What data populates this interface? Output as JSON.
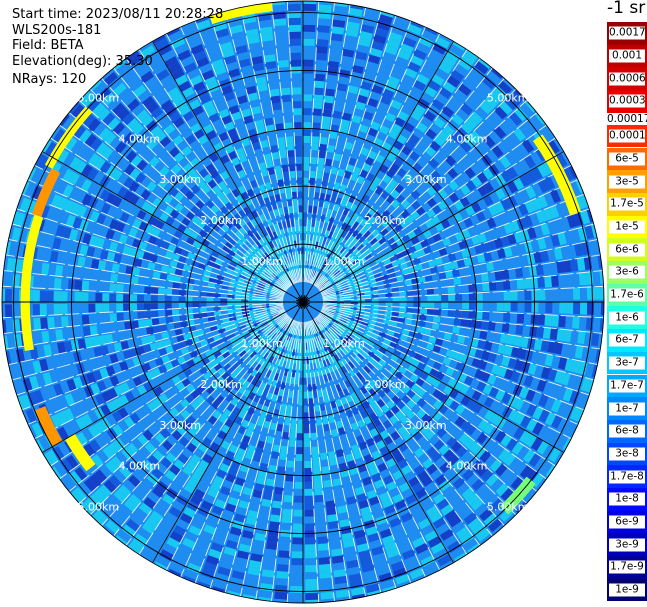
{
  "header": {
    "start_time": "Start time: 2023/08/11 20:28:28",
    "device": "WLS200s-181",
    "field": "Field: BETA",
    "elevation": "Elevation(deg): 35.30",
    "nrays": "NRays: 120"
  },
  "colorbar": {
    "title": "-1 sr",
    "top_group": [
      {
        "label": "0.0017",
        "color": "#9b0000"
      },
      {
        "label": "0.001",
        "color": "#bf0000"
      },
      {
        "label": "0.0006",
        "color": "#d40000"
      },
      {
        "label": "0.0003",
        "color": "#e80000"
      }
    ],
    "separator_label": "0.00017",
    "bottom_group": [
      {
        "label": "0.0001",
        "color": "#ff2a00"
      },
      {
        "label": "6e-5",
        "color": "#ff6a00"
      },
      {
        "label": "3e-5",
        "color": "#ffa000"
      },
      {
        "label": "1.7e-5",
        "color": "#ffd000"
      },
      {
        "label": "1e-5",
        "color": "#ffff00"
      },
      {
        "label": "6e-6",
        "color": "#d0ff20"
      },
      {
        "label": "3e-6",
        "color": "#9cff60"
      },
      {
        "label": "1.7e-6",
        "color": "#60ffa0"
      },
      {
        "label": "1e-6",
        "color": "#20ffe0"
      },
      {
        "label": "6e-7",
        "color": "#00e8ff"
      },
      {
        "label": "3e-7",
        "color": "#00c8ff"
      },
      {
        "label": "1.7e-7",
        "color": "#00a8ff"
      },
      {
        "label": "1e-7",
        "color": "#0088ff"
      },
      {
        "label": "6e-8",
        "color": "#0068ff"
      },
      {
        "label": "3e-8",
        "color": "#0048ff"
      },
      {
        "label": "1.7e-8",
        "color": "#0028ff"
      },
      {
        "label": "1e-8",
        "color": "#0008ff"
      },
      {
        "label": "6e-9",
        "color": "#0000e0"
      },
      {
        "label": "3e-9",
        "color": "#0000bb"
      },
      {
        "label": "1.7e-9",
        "color": "#000096"
      },
      {
        "label": "1e-9",
        "color": "#000070"
      }
    ]
  },
  "map": {
    "range_rings": [
      {
        "range_km": 1,
        "label": "1.00km"
      },
      {
        "range_km": 2,
        "label": "2.00km"
      },
      {
        "range_km": 3,
        "label": "3.00km"
      },
      {
        "range_km": 4,
        "label": "4.00km"
      },
      {
        "range_km": 5,
        "label": "5.00km"
      }
    ],
    "max_range_km": 5.2,
    "rays": 120,
    "colors": {
      "background": "#1e8cf0",
      "light": "#19c8f0",
      "dark": "#145adc",
      "darker": "#1440c8",
      "yellow": "#ffff00",
      "orange": "#ff9600",
      "green": "#78ff78",
      "gridline": "#000000",
      "label": "#ffffff"
    }
  }
}
